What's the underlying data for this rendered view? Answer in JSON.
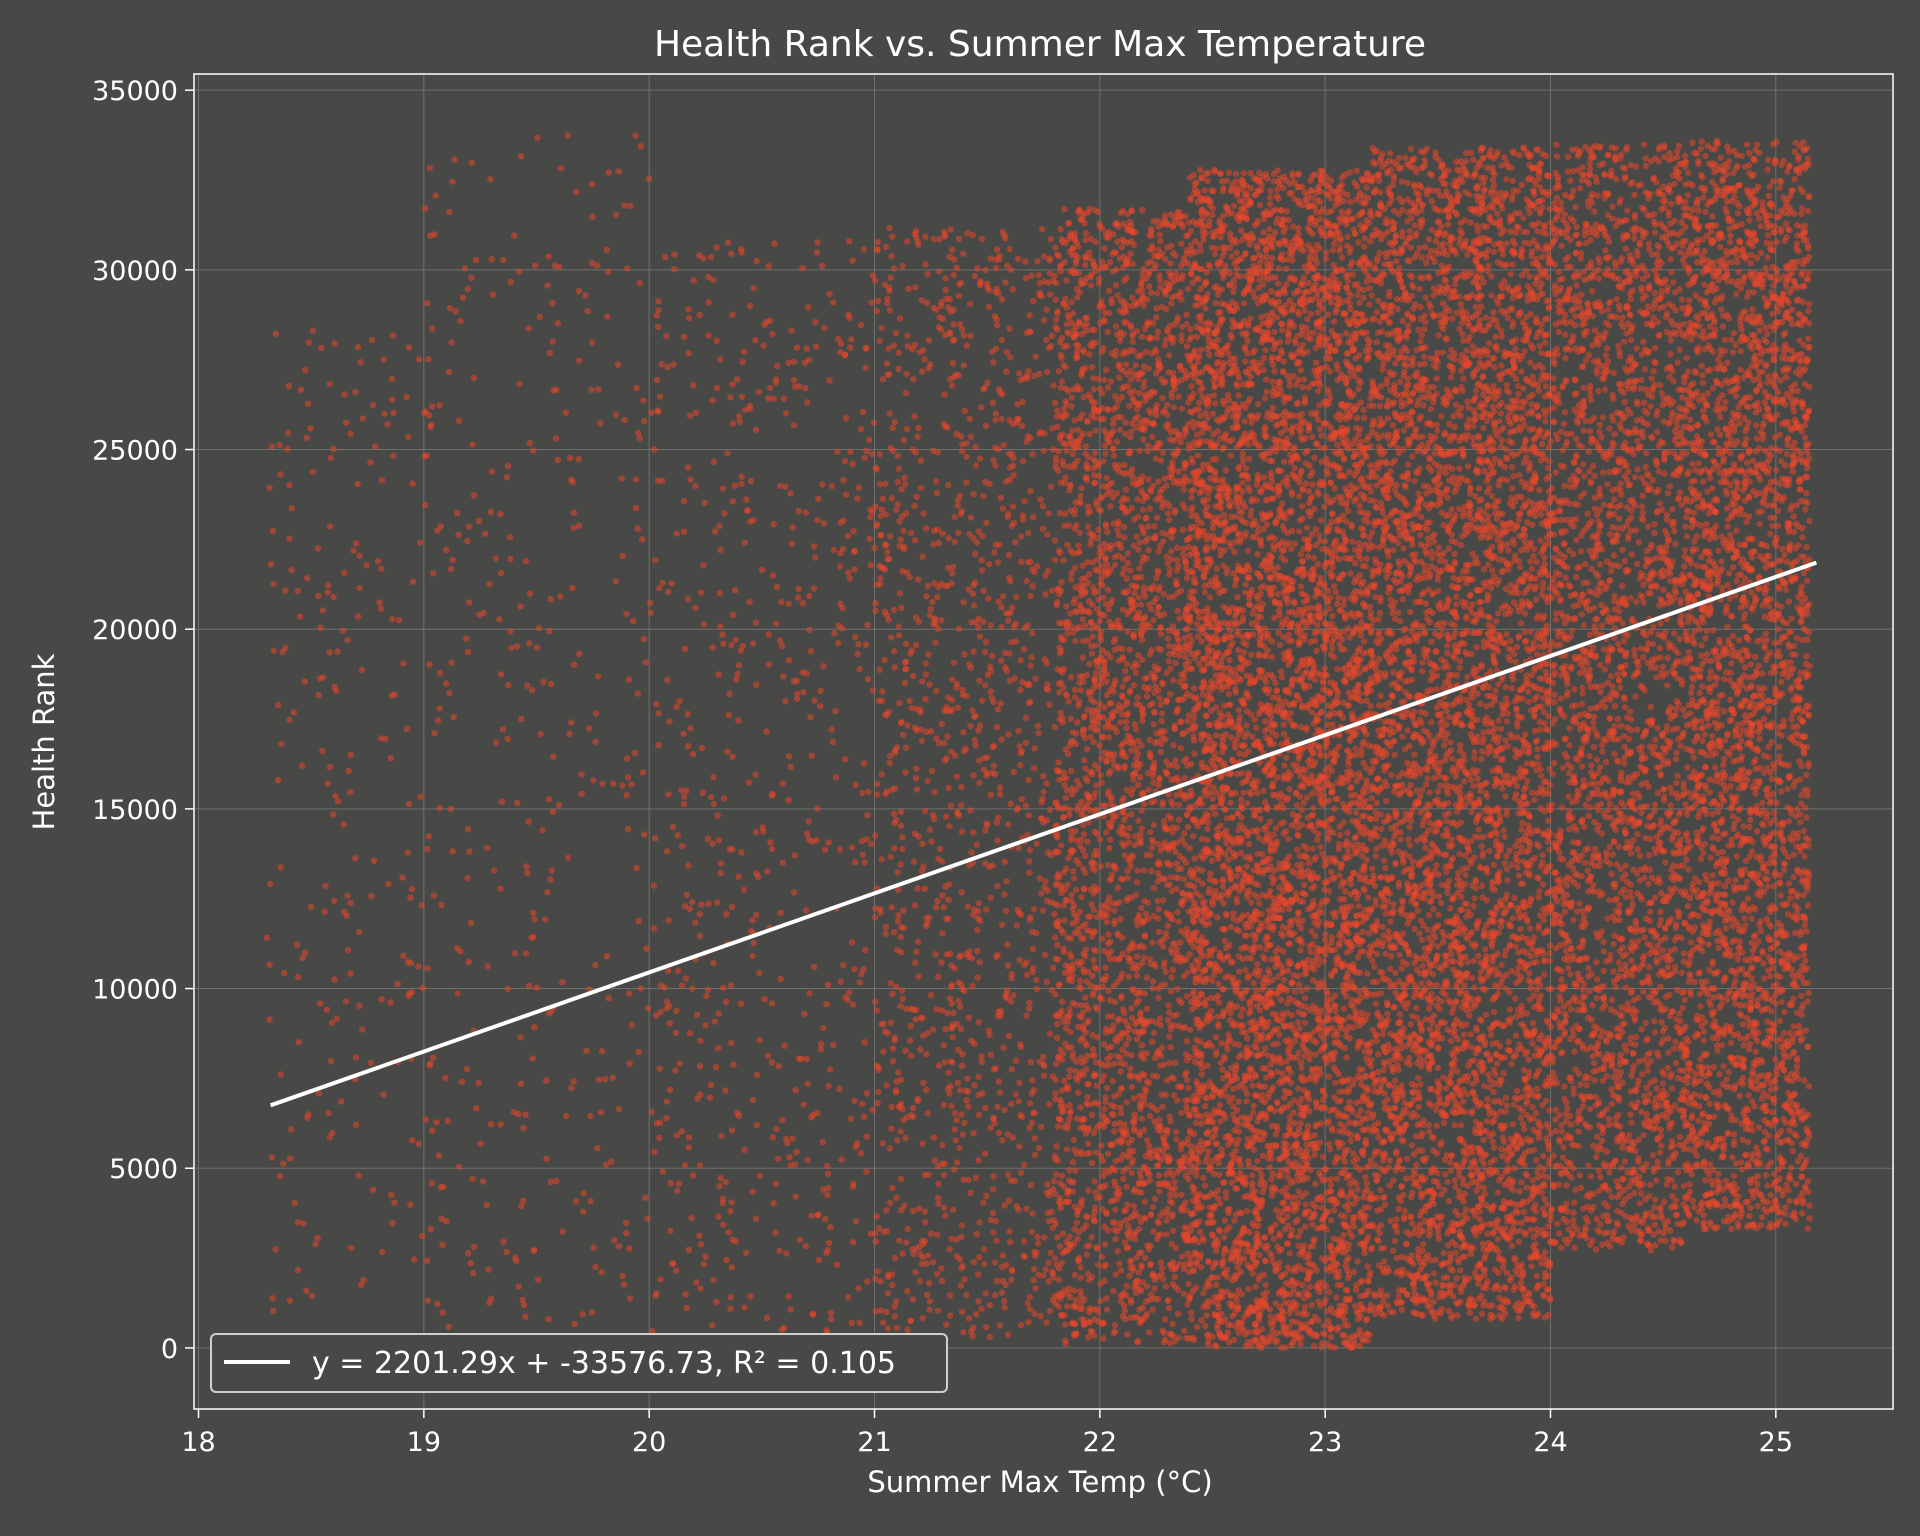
{
  "chart_data": {
    "type": "scatter",
    "title": "Health Rank vs. Summer Max Temperature",
    "xlabel": "Summer Max Temp (°C)",
    "ylabel": "Health Rank",
    "xlim": [
      17.98,
      25.52
    ],
    "ylim": [
      -1700,
      35450
    ],
    "xticks": [
      18,
      19,
      20,
      21,
      22,
      23,
      24,
      25
    ],
    "yticks": [
      0,
      5000,
      10000,
      15000,
      20000,
      25000,
      30000,
      35000
    ],
    "grid": true,
    "legend_position": "lower-left",
    "colors": {
      "background": "#484846",
      "points": "#e8472c",
      "fit_line": "#ffffff",
      "grid": "#8a8a88",
      "frame": "#ffffff"
    },
    "fit_line": {
      "label": "y = 2201.29x + -33576.73, R² = 0.105",
      "slope": 2201.29,
      "intercept": -33576.73,
      "x_range": [
        18.32,
        25.18
      ]
    },
    "point_density_profile": [
      {
        "x_range": [
          18.3,
          19.0
        ],
        "relative_count": 0.35,
        "y_range": [
          0,
          28500
        ]
      },
      {
        "x_range": [
          19.0,
          20.0
        ],
        "relative_count": 0.6,
        "y_range": [
          0,
          33800
        ]
      },
      {
        "x_range": [
          20.0,
          21.0
        ],
        "relative_count": 1.0,
        "y_range": [
          0,
          30800
        ]
      },
      {
        "x_range": [
          21.0,
          21.8
        ],
        "relative_count": 2.0,
        "y_range": [
          300,
          31200
        ]
      },
      {
        "x_range": [
          21.8,
          22.4
        ],
        "relative_count": 4.5,
        "y_range": [
          100,
          31700
        ]
      },
      {
        "x_range": [
          22.4,
          23.2
        ],
        "relative_count": 9.0,
        "y_range": [
          0,
          32800
        ]
      },
      {
        "x_range": [
          23.2,
          24.0
        ],
        "relative_count": 8.0,
        "y_range": [
          800,
          33400
        ]
      },
      {
        "x_range": [
          24.0,
          24.6
        ],
        "relative_count": 4.5,
        "y_range": [
          2700,
          33500
        ]
      },
      {
        "x_range": [
          24.6,
          25.15
        ],
        "relative_count": 5.0,
        "y_range": [
          3300,
          33600
        ]
      }
    ]
  }
}
